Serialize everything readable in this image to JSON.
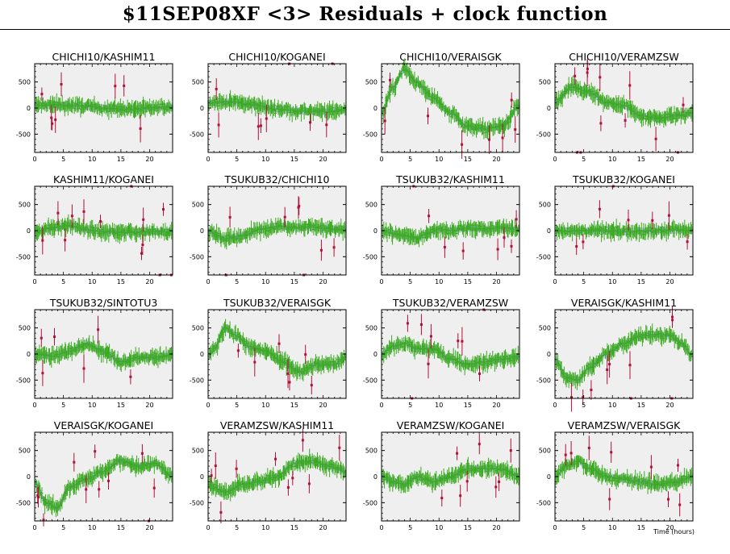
{
  "title": "$11SEP08XF <3> Residuals + clock function",
  "xlabel": "Time (hours)",
  "colors": {
    "panel_bg": "#efefef",
    "good_points": "#3aaa1e",
    "outlier_points": "#b0103a",
    "clock_band": "#b7c3e6",
    "clock_line": "#6f86d8"
  },
  "chart_data": [
    {
      "type": "scatter",
      "title": "CHICHI10/KASHIM11",
      "xlim": [
        0,
        24
      ],
      "ylim": [
        -850,
        850
      ],
      "xticks": [
        0,
        5,
        10,
        15,
        20
      ],
      "yticks": [
        -500,
        0,
        500
      ],
      "clock": {
        "x": [
          0,
          4,
          8,
          12,
          16,
          20,
          24
        ],
        "y": [
          50,
          60,
          40,
          0,
          -20,
          0,
          30
        ]
      }
    },
    {
      "type": "scatter",
      "title": "CHICHI10/KOGANEI",
      "xlim": [
        0,
        24
      ],
      "ylim": [
        -850,
        850
      ],
      "xticks": [
        0,
        5,
        10,
        15,
        20
      ],
      "yticks": [
        -500,
        0,
        500
      ],
      "clock": {
        "x": [
          0,
          4,
          8,
          12,
          16,
          20,
          24
        ],
        "y": [
          100,
          120,
          60,
          -20,
          -60,
          -70,
          -30
        ]
      }
    },
    {
      "type": "scatter",
      "title": "CHICHI10/VERAISGK",
      "xlim": [
        0,
        24
      ],
      "ylim": [
        -850,
        850
      ],
      "xticks": [
        0,
        5,
        10,
        15,
        20
      ],
      "yticks": [
        -500,
        0,
        500
      ],
      "clock": {
        "x": [
          0,
          2,
          4,
          6,
          9,
          12,
          15,
          18,
          21,
          24
        ],
        "y": [
          -100,
          400,
          750,
          500,
          200,
          -100,
          -350,
          -400,
          -350,
          50
        ]
      }
    },
    {
      "type": "scatter",
      "title": "CHICHI10/VERAMZSW",
      "xlim": [
        0,
        24
      ],
      "ylim": [
        -850,
        850
      ],
      "xticks": [
        0,
        5,
        10,
        15,
        20
      ],
      "yticks": [
        -500,
        0,
        500
      ],
      "clock": {
        "x": [
          0,
          3,
          6,
          9,
          12,
          15,
          18,
          21,
          24
        ],
        "y": [
          100,
          400,
          300,
          100,
          50,
          -150,
          -200,
          -150,
          -100
        ]
      }
    },
    {
      "type": "scatter",
      "title": "KASHIM11/KOGANEI",
      "xlim": [
        0,
        24
      ],
      "ylim": [
        -850,
        850
      ],
      "xticks": [
        0,
        5,
        10,
        15,
        20
      ],
      "yticks": [
        -500,
        0,
        500
      ],
      "clock": {
        "x": [
          0,
          3,
          6,
          9,
          12,
          15,
          18,
          21,
          24
        ],
        "y": [
          -20,
          50,
          100,
          20,
          -20,
          -30,
          -30,
          -20,
          -20
        ]
      }
    },
    {
      "type": "scatter",
      "title": "TSUKUB32/CHICHI10",
      "xlim": [
        0,
        24
      ],
      "ylim": [
        -850,
        850
      ],
      "xticks": [
        0,
        5,
        10,
        15,
        20
      ],
      "yticks": [
        -500,
        0,
        500
      ],
      "clock": {
        "x": [
          0,
          3,
          6,
          9,
          12,
          15,
          18,
          21,
          24
        ],
        "y": [
          -20,
          -150,
          -100,
          20,
          80,
          60,
          70,
          40,
          20
        ]
      }
    },
    {
      "type": "scatter",
      "title": "TSUKUB32/KASHIM11",
      "xlim": [
        0,
        24
      ],
      "ylim": [
        -850,
        850
      ],
      "xticks": [
        0,
        5,
        10,
        15,
        20
      ],
      "yticks": [
        -500,
        0,
        500
      ],
      "clock": {
        "x": [
          0,
          2,
          4,
          6,
          8,
          10,
          12,
          15,
          18,
          21,
          24
        ],
        "y": [
          0,
          -50,
          -100,
          -150,
          -60,
          30,
          0,
          50,
          30,
          50,
          20
        ]
      }
    },
    {
      "type": "scatter",
      "title": "TSUKUB32/KOGANEI",
      "xlim": [
        0,
        24
      ],
      "ylim": [
        -850,
        850
      ],
      "xticks": [
        0,
        5,
        10,
        15,
        20
      ],
      "yticks": [
        -500,
        0,
        500
      ],
      "clock": {
        "x": [
          0,
          4,
          8,
          12,
          16,
          20,
          24
        ],
        "y": [
          0,
          -10,
          0,
          -20,
          -10,
          10,
          10
        ]
      }
    },
    {
      "type": "scatter",
      "title": "TSUKUB32/SINTOTU3",
      "xlim": [
        0,
        24
      ],
      "ylim": [
        -850,
        850
      ],
      "xticks": [
        0,
        5,
        10,
        15,
        20
      ],
      "yticks": [
        -500,
        0,
        500
      ],
      "clock": {
        "x": [
          0,
          3,
          6,
          9,
          12,
          15,
          18,
          21,
          24
        ],
        "y": [
          0,
          -40,
          50,
          200,
          50,
          -150,
          -60,
          -60,
          -10
        ]
      }
    },
    {
      "type": "scatter",
      "title": "TSUKUB32/VERAISGK",
      "xlim": [
        0,
        24
      ],
      "ylim": [
        -850,
        850
      ],
      "xticks": [
        0,
        5,
        10,
        15,
        20
      ],
      "yticks": [
        -500,
        0,
        500
      ],
      "clock": {
        "x": [
          0,
          1,
          3,
          5,
          7,
          10,
          13,
          16,
          19,
          22,
          24
        ],
        "y": [
          -50,
          100,
          500,
          350,
          150,
          50,
          -150,
          -350,
          -200,
          -200,
          -50
        ]
      }
    },
    {
      "type": "scatter",
      "title": "TSUKUB32/VERAMZSW",
      "xlim": [
        0,
        24
      ],
      "ylim": [
        -850,
        850
      ],
      "xticks": [
        0,
        5,
        10,
        15,
        20
      ],
      "yticks": [
        -500,
        0,
        500
      ],
      "clock": {
        "x": [
          0,
          2,
          4,
          6,
          9,
          12,
          15,
          18,
          21,
          24
        ],
        "y": [
          0,
          150,
          200,
          100,
          100,
          -100,
          -200,
          -150,
          -100,
          -50
        ]
      }
    },
    {
      "type": "scatter",
      "title": "VERAISGK/KASHIM11",
      "xlim": [
        0,
        24
      ],
      "ylim": [
        -850,
        850
      ],
      "xticks": [
        0,
        5,
        10,
        15,
        20
      ],
      "yticks": [
        -500,
        0,
        500
      ],
      "clock": {
        "x": [
          0,
          2,
          4,
          6,
          9,
          12,
          15,
          18,
          20,
          22,
          24
        ],
        "y": [
          -100,
          -450,
          -500,
          -250,
          0,
          200,
          350,
          380,
          350,
          200,
          -50
        ]
      }
    },
    {
      "type": "scatter",
      "title": "VERAISGK/KOGANEI",
      "xlim": [
        0,
        24
      ],
      "ylim": [
        -850,
        850
      ],
      "xticks": [
        0,
        5,
        10,
        15,
        20
      ],
      "yticks": [
        -500,
        0,
        500
      ],
      "clock": {
        "x": [
          0,
          2,
          4,
          6,
          9,
          12,
          15,
          18,
          21,
          24
        ],
        "y": [
          -100,
          -500,
          -600,
          -200,
          -50,
          100,
          300,
          200,
          250,
          0
        ]
      }
    },
    {
      "type": "scatter",
      "title": "VERAMZSW/KASHIM11",
      "xlim": [
        0,
        24
      ],
      "ylim": [
        -850,
        850
      ],
      "xticks": [
        0,
        5,
        10,
        15,
        20
      ],
      "yticks": [
        -500,
        0,
        500
      ],
      "clock": {
        "x": [
          0,
          3,
          6,
          9,
          12,
          15,
          18,
          21,
          24
        ],
        "y": [
          -150,
          -300,
          -150,
          -100,
          0,
          250,
          300,
          200,
          100
        ]
      }
    },
    {
      "type": "scatter",
      "title": "VERAMZSW/KOGANEI",
      "xlim": [
        0,
        24
      ],
      "ylim": [
        -850,
        850
      ],
      "xticks": [
        0,
        5,
        10,
        15,
        20
      ],
      "yticks": [
        -500,
        0,
        500
      ],
      "clock": {
        "x": [
          0,
          2,
          4,
          6,
          9,
          12,
          15,
          18,
          21,
          24
        ],
        "y": [
          0,
          -100,
          -150,
          0,
          -100,
          0,
          150,
          150,
          150,
          0
        ]
      }
    },
    {
      "type": "scatter",
      "title": "VERAMZSW/VERAISGK",
      "xlim": [
        0,
        24
      ],
      "ylim": [
        -850,
        850
      ],
      "xticks": [
        0,
        5,
        10,
        15,
        20
      ],
      "yticks": [
        -500,
        0,
        500
      ],
      "clock": {
        "x": [
          0,
          2,
          4,
          6,
          9,
          12,
          15,
          18,
          21,
          24
        ],
        "y": [
          0,
          200,
          300,
          150,
          0,
          -50,
          -100,
          -150,
          -100,
          0
        ]
      }
    }
  ]
}
